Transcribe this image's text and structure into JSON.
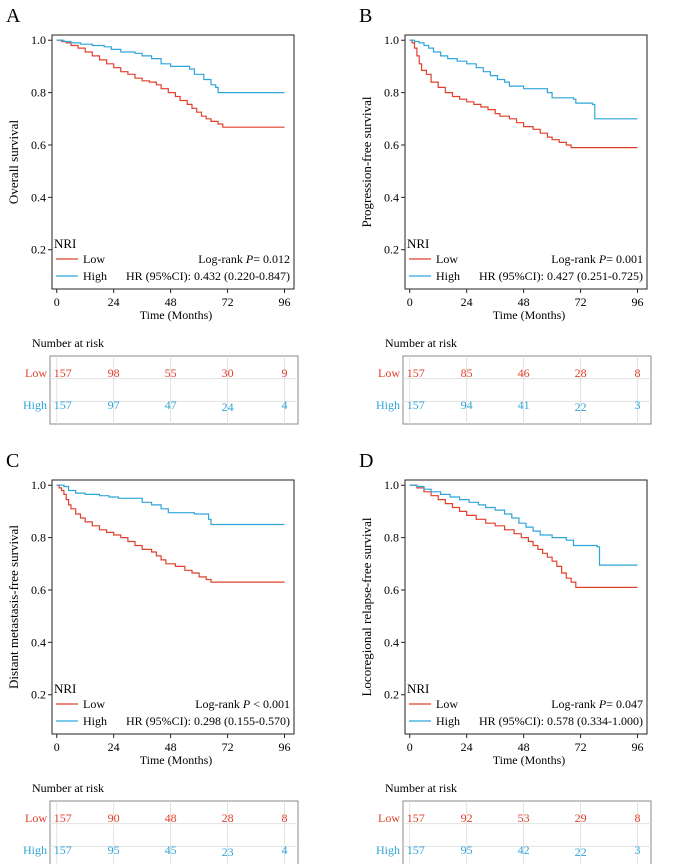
{
  "colors": {
    "low": "#e0402c",
    "high": "#2fa6d9",
    "axis": "#222222",
    "grid": "#dddddd"
  },
  "chart_data": [
    {
      "type": "line",
      "panel": "A",
      "ylabel": "Overall survival",
      "xlabel": "Time (Months)",
      "xticks": [
        0,
        24,
        48,
        72,
        96
      ],
      "yticks": [
        0.2,
        0.4,
        0.6,
        0.8,
        1.0
      ],
      "xlim": [
        -2,
        100
      ],
      "ylim": [
        0.05,
        1.02
      ],
      "legend_title": "NRI",
      "stats": {
        "logrank_label": "Log-rank ",
        "p_label": "P",
        "logrank_value": "= 0.012",
        "hr": "HR (95%CI): 0.432 (0.220-0.847)"
      },
      "risk_table": {
        "title": "Number at risk",
        "times": [
          0,
          24,
          48,
          72,
          96
        ]
      },
      "series": [
        {
          "name": "Low",
          "color_key": "low",
          "points": [
            [
              0,
              1.0
            ],
            [
              2,
              0.995
            ],
            [
              4,
              0.99
            ],
            [
              6,
              0.98
            ],
            [
              9,
              0.97
            ],
            [
              12,
              0.955
            ],
            [
              15,
              0.94
            ],
            [
              18,
              0.925
            ],
            [
              21,
              0.91
            ],
            [
              24,
              0.895
            ],
            [
              27,
              0.88
            ],
            [
              30,
              0.87
            ],
            [
              33,
              0.855
            ],
            [
              36,
              0.845
            ],
            [
              39,
              0.84
            ],
            [
              42,
              0.83
            ],
            [
              44,
              0.815
            ],
            [
              47,
              0.8
            ],
            [
              50,
              0.785
            ],
            [
              52,
              0.77
            ],
            [
              55,
              0.755
            ],
            [
              57,
              0.74
            ],
            [
              59,
              0.725
            ],
            [
              61,
              0.71
            ],
            [
              63,
              0.7
            ],
            [
              65,
              0.69
            ],
            [
              68,
              0.68
            ],
            [
              70,
              0.668
            ],
            [
              96,
              0.668
            ]
          ],
          "risk": [
            157,
            98,
            55,
            30,
            9
          ]
        },
        {
          "name": "High",
          "color_key": "high",
          "points": [
            [
              0,
              1.0
            ],
            [
              3,
              0.995
            ],
            [
              6,
              0.99
            ],
            [
              10,
              0.985
            ],
            [
              15,
              0.98
            ],
            [
              20,
              0.975
            ],
            [
              23,
              0.965
            ],
            [
              27,
              0.955
            ],
            [
              33,
              0.95
            ],
            [
              36,
              0.94
            ],
            [
              40,
              0.93
            ],
            [
              44,
              0.91
            ],
            [
              48,
              0.9
            ],
            [
              56,
              0.89
            ],
            [
              58,
              0.87
            ],
            [
              62,
              0.85
            ],
            [
              65,
              0.83
            ],
            [
              67,
              0.82
            ],
            [
              68,
              0.8
            ],
            [
              96,
              0.8
            ]
          ],
          "risk": [
            157,
            97,
            47,
            24,
            4
          ]
        }
      ]
    },
    {
      "type": "line",
      "panel": "B",
      "ylabel": "Progression-free survival",
      "xlabel": "Time (Months)",
      "xticks": [
        0,
        24,
        48,
        72,
        96
      ],
      "yticks": [
        0.2,
        0.4,
        0.6,
        0.8,
        1.0
      ],
      "xlim": [
        -2,
        100
      ],
      "ylim": [
        0.05,
        1.02
      ],
      "legend_title": "NRI",
      "stats": {
        "logrank_label": "Log-rank ",
        "p_label": "P",
        "logrank_value": "= 0.001",
        "hr": "HR (95%CI): 0.427 (0.251-0.725)"
      },
      "risk_table": {
        "title": "Number at risk",
        "times": [
          0,
          24,
          48,
          72,
          96
        ]
      },
      "series": [
        {
          "name": "Low",
          "color_key": "low",
          "points": [
            [
              0,
              1.0
            ],
            [
              1,
              0.99
            ],
            [
              2,
              0.97
            ],
            [
              3,
              0.94
            ],
            [
              4,
              0.91
            ],
            [
              5,
              0.885
            ],
            [
              7,
              0.87
            ],
            [
              9,
              0.84
            ],
            [
              12,
              0.82
            ],
            [
              15,
              0.8
            ],
            [
              18,
              0.785
            ],
            [
              21,
              0.775
            ],
            [
              24,
              0.765
            ],
            [
              27,
              0.755
            ],
            [
              30,
              0.745
            ],
            [
              33,
              0.735
            ],
            [
              36,
              0.72
            ],
            [
              38,
              0.71
            ],
            [
              42,
              0.7
            ],
            [
              45,
              0.685
            ],
            [
              48,
              0.67
            ],
            [
              52,
              0.66
            ],
            [
              55,
              0.645
            ],
            [
              58,
              0.63
            ],
            [
              60,
              0.62
            ],
            [
              63,
              0.61
            ],
            [
              66,
              0.6
            ],
            [
              68,
              0.59
            ],
            [
              96,
              0.59
            ]
          ],
          "risk": [
            157,
            85,
            46,
            28,
            8
          ]
        },
        {
          "name": "High",
          "color_key": "high",
          "points": [
            [
              0,
              1.0
            ],
            [
              2,
              0.995
            ],
            [
              4,
              0.99
            ],
            [
              6,
              0.98
            ],
            [
              8,
              0.97
            ],
            [
              10,
              0.955
            ],
            [
              13,
              0.94
            ],
            [
              16,
              0.93
            ],
            [
              20,
              0.92
            ],
            [
              24,
              0.91
            ],
            [
              28,
              0.895
            ],
            [
              31,
              0.88
            ],
            [
              34,
              0.865
            ],
            [
              37,
              0.85
            ],
            [
              40,
              0.84
            ],
            [
              42,
              0.825
            ],
            [
              48,
              0.815
            ],
            [
              58,
              0.8
            ],
            [
              60,
              0.78
            ],
            [
              69,
              0.775
            ],
            [
              70,
              0.76
            ],
            [
              77,
              0.755
            ],
            [
              78,
              0.7
            ],
            [
              96,
              0.7
            ]
          ],
          "risk": [
            157,
            94,
            41,
            22,
            3
          ]
        }
      ]
    },
    {
      "type": "line",
      "panel": "C",
      "ylabel": "Distant metastasis-free survival",
      "xlabel": "Time (Months)",
      "xticks": [
        0,
        24,
        48,
        72,
        96
      ],
      "yticks": [
        0.2,
        0.4,
        0.6,
        0.8,
        1.0
      ],
      "xlim": [
        -2,
        100
      ],
      "ylim": [
        0.05,
        1.02
      ],
      "legend_title": "NRI",
      "stats": {
        "logrank_label": "Log-rank ",
        "p_label": "P",
        "logrank_value": " < 0.001",
        "hr": "HR (95%CI): 0.298 (0.155-0.570)"
      },
      "risk_table": {
        "title": "Number at risk",
        "times": [
          0,
          24,
          48,
          72,
          96
        ]
      },
      "series": [
        {
          "name": "Low",
          "color_key": "low",
          "points": [
            [
              0,
              1.0
            ],
            [
              1,
              0.99
            ],
            [
              2,
              0.98
            ],
            [
              3,
              0.965
            ],
            [
              4,
              0.945
            ],
            [
              5,
              0.925
            ],
            [
              6,
              0.91
            ],
            [
              8,
              0.89
            ],
            [
              10,
              0.875
            ],
            [
              12,
              0.86
            ],
            [
              15,
              0.845
            ],
            [
              18,
              0.83
            ],
            [
              21,
              0.82
            ],
            [
              24,
              0.81
            ],
            [
              27,
              0.8
            ],
            [
              30,
              0.785
            ],
            [
              33,
              0.77
            ],
            [
              36,
              0.755
            ],
            [
              40,
              0.745
            ],
            [
              42,
              0.73
            ],
            [
              44,
              0.715
            ],
            [
              46,
              0.7
            ],
            [
              50,
              0.69
            ],
            [
              54,
              0.675
            ],
            [
              57,
              0.665
            ],
            [
              60,
              0.65
            ],
            [
              63,
              0.64
            ],
            [
              65,
              0.63
            ],
            [
              96,
              0.63
            ]
          ],
          "risk": [
            157,
            90,
            48,
            28,
            8
          ]
        },
        {
          "name": "High",
          "color_key": "high",
          "points": [
            [
              0,
              1.0
            ],
            [
              3,
              0.995
            ],
            [
              5,
              0.98
            ],
            [
              8,
              0.97
            ],
            [
              12,
              0.965
            ],
            [
              18,
              0.96
            ],
            [
              22,
              0.955
            ],
            [
              26,
              0.95
            ],
            [
              36,
              0.935
            ],
            [
              40,
              0.925
            ],
            [
              44,
              0.91
            ],
            [
              47,
              0.895
            ],
            [
              58,
              0.89
            ],
            [
              64,
              0.87
            ],
            [
              65,
              0.85
            ],
            [
              96,
              0.85
            ]
          ],
          "risk": [
            157,
            95,
            45,
            23,
            4
          ]
        }
      ]
    },
    {
      "type": "line",
      "panel": "D",
      "ylabel": "Locoregional relapse-free survival",
      "xlabel": "Time (Months)",
      "xticks": [
        0,
        24,
        48,
        72,
        96
      ],
      "yticks": [
        0.2,
        0.4,
        0.6,
        0.8,
        1.0
      ],
      "xlim": [
        -2,
        100
      ],
      "ylim": [
        0.05,
        1.02
      ],
      "legend_title": "NRI",
      "stats": {
        "logrank_label": "Log-rank ",
        "p_label": "P",
        "logrank_value": "= 0.047",
        "hr": "HR (95%CI): 0.578 (0.334-1.000)"
      },
      "risk_table": {
        "title": "Number at risk",
        "times": [
          0,
          24,
          48,
          72,
          96
        ]
      },
      "series": [
        {
          "name": "Low",
          "color_key": "low",
          "points": [
            [
              0,
              1.0
            ],
            [
              3,
              0.99
            ],
            [
              6,
              0.975
            ],
            [
              9,
              0.96
            ],
            [
              12,
              0.945
            ],
            [
              15,
              0.93
            ],
            [
              18,
              0.915
            ],
            [
              21,
              0.9
            ],
            [
              24,
              0.885
            ],
            [
              28,
              0.87
            ],
            [
              32,
              0.855
            ],
            [
              36,
              0.845
            ],
            [
              40,
              0.83
            ],
            [
              44,
              0.815
            ],
            [
              47,
              0.8
            ],
            [
              50,
              0.785
            ],
            [
              52,
              0.77
            ],
            [
              54,
              0.755
            ],
            [
              56,
              0.74
            ],
            [
              58,
              0.725
            ],
            [
              60,
              0.71
            ],
            [
              62,
              0.69
            ],
            [
              64,
              0.665
            ],
            [
              66,
              0.645
            ],
            [
              68,
              0.63
            ],
            [
              70,
              0.61
            ],
            [
              96,
              0.61
            ]
          ],
          "risk": [
            157,
            92,
            53,
            29,
            8
          ]
        },
        {
          "name": "High",
          "color_key": "high",
          "points": [
            [
              0,
              1.0
            ],
            [
              3,
              0.995
            ],
            [
              6,
              0.985
            ],
            [
              9,
              0.975
            ],
            [
              13,
              0.965
            ],
            [
              17,
              0.955
            ],
            [
              21,
              0.945
            ],
            [
              25,
              0.935
            ],
            [
              29,
              0.925
            ],
            [
              32,
              0.915
            ],
            [
              36,
              0.905
            ],
            [
              40,
              0.89
            ],
            [
              43,
              0.875
            ],
            [
              46,
              0.855
            ],
            [
              49,
              0.84
            ],
            [
              52,
              0.825
            ],
            [
              55,
              0.81
            ],
            [
              60,
              0.8
            ],
            [
              66,
              0.79
            ],
            [
              69,
              0.77
            ],
            [
              79,
              0.765
            ],
            [
              80,
              0.695
            ],
            [
              96,
              0.695
            ]
          ],
          "risk": [
            157,
            95,
            42,
            22,
            3
          ]
        }
      ]
    }
  ]
}
